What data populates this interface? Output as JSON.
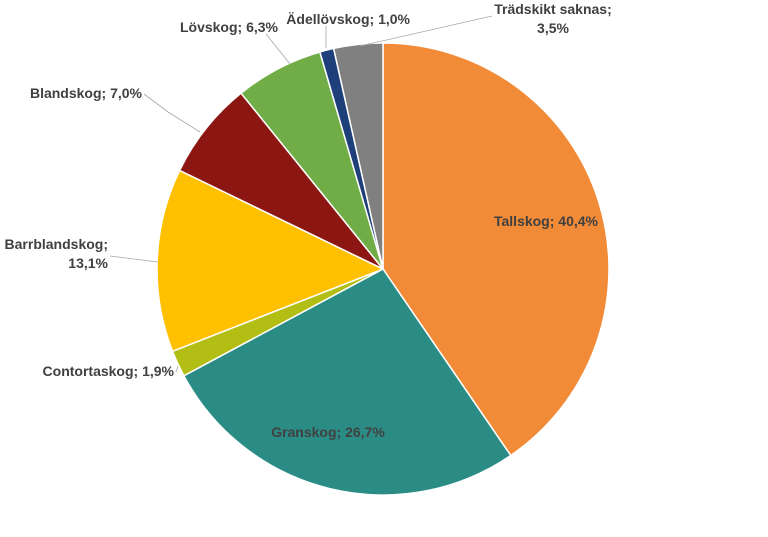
{
  "chart_data": {
    "type": "pie",
    "title": "",
    "slices": [
      {
        "name": "Tallskog",
        "value": 40.4,
        "color": "#F28B38",
        "label": "Tallskog; 40,4%",
        "label_lines": [
          "Tallskog; 40,4%"
        ]
      },
      {
        "name": "Granskog",
        "value": 26.7,
        "color": "#2B8C86",
        "label": "Granskog; 26,7%",
        "label_lines": [
          "Granskog; 26,7%"
        ]
      },
      {
        "name": "Contortaskog",
        "value": 1.9,
        "color": "#B3BE14",
        "label": "Contortaskog; 1,9%",
        "label_lines": [
          "Contortaskog; 1,9%"
        ]
      },
      {
        "name": "Barrblandskog",
        "value": 13.1,
        "color": "#FFC000",
        "label": "Barrblandskog; 13,1%",
        "label_lines": [
          "Barrblandskog;",
          "13,1%"
        ]
      },
      {
        "name": "Blandskog",
        "value": 7.0,
        "color": "#8B1612",
        "label": "Blandskog; 7,0%",
        "label_lines": [
          "Blandskog; 7,0%"
        ]
      },
      {
        "name": "Lövskog",
        "value": 6.3,
        "color": "#70AD47",
        "label": "Lövskog; 6,3%",
        "label_lines": [
          "Lövskog; 6,3%"
        ]
      },
      {
        "name": "Ädellövskog",
        "value": 1.0,
        "color": "#1F3F7A",
        "label": "Ädellövskog; 1,0%",
        "label_lines": [
          "Ädellövskog; 1,0%"
        ]
      },
      {
        "name": "Trädskikt saknas",
        "value": 3.5,
        "color": "#808080",
        "label": "Trädskikt saknas; 3,5%",
        "label_lines": [
          "Trädskikt saknas;",
          "3,5%"
        ]
      }
    ],
    "start_angle_deg": 0,
    "direction": "clockwise"
  }
}
